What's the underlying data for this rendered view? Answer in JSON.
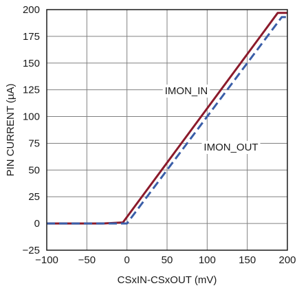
{
  "chart_data": {
    "type": "line",
    "title": "",
    "xlabel": "CSxIN-CSxOUT (mV)",
    "ylabel": "PIN CURRENT (µA)",
    "xlim": [
      -100,
      200
    ],
    "ylim": [
      -25,
      200
    ],
    "xticks": [
      "−100",
      "−50",
      "0",
      "50",
      "100",
      "150",
      "200"
    ],
    "yticks": [
      "−25",
      "0",
      "25",
      "50",
      "75",
      "100",
      "125",
      "150",
      "175",
      "200"
    ],
    "grid": true,
    "series": [
      {
        "name": "IMON_IN",
        "color": "#8b1a2b",
        "dash": "solid",
        "x": [
          -100,
          -30,
          -5,
          188,
          200
        ],
        "y": [
          0,
          0,
          1,
          197,
          197
        ]
      },
      {
        "name": "IMON_OUT",
        "color": "#3a5ea8",
        "dash": "dashed",
        "x": [
          -100,
          -30,
          0,
          193,
          200
        ],
        "y": [
          0,
          0,
          0,
          193,
          193
        ]
      }
    ]
  }
}
